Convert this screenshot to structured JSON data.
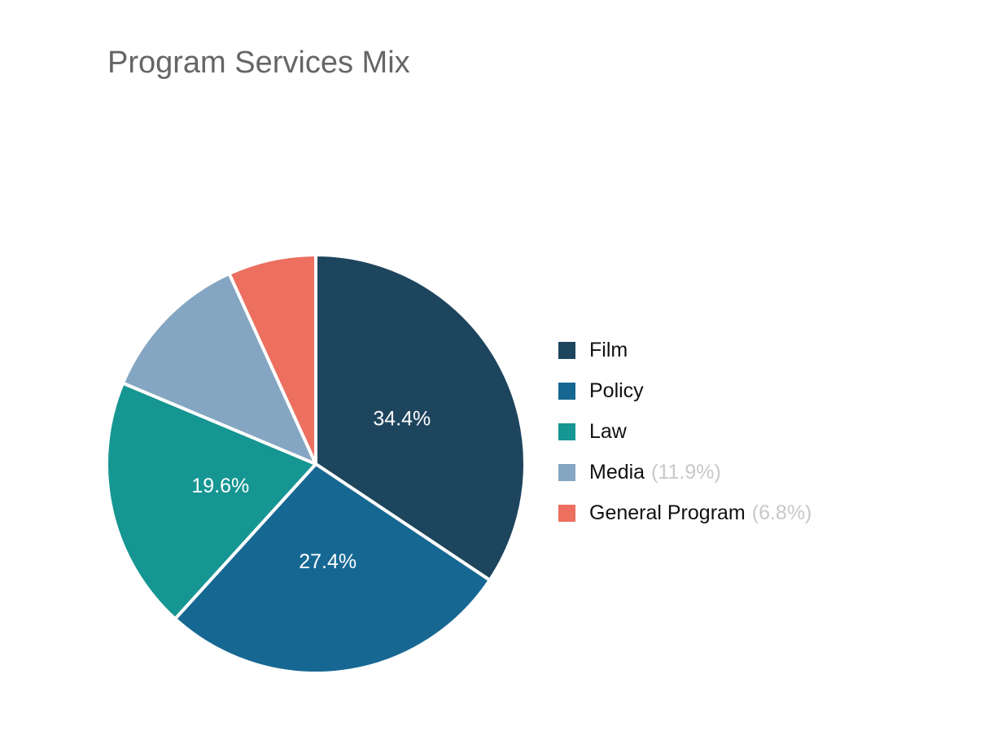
{
  "chart_data": {
    "type": "pie",
    "title": "Program Services Mix",
    "legend_position": "right",
    "slices": [
      {
        "label": "Film",
        "value": 34.4,
        "color": "#1e455e",
        "data_label": "34.4%",
        "legend_suffix": ""
      },
      {
        "label": "Policy",
        "value": 27.4,
        "color": "#166893",
        "data_label": "27.4%",
        "legend_suffix": ""
      },
      {
        "label": "Law",
        "value": 19.6,
        "color": "#169692",
        "data_label": "19.6%",
        "legend_suffix": ""
      },
      {
        "label": "Media",
        "value": 11.9,
        "color": "#84a6c2",
        "data_label": "",
        "legend_suffix": "(11.9%)"
      },
      {
        "label": "General Program",
        "value": 6.8,
        "color": "#ec6f60",
        "data_label": "",
        "legend_suffix": "(6.8%)"
      }
    ]
  }
}
